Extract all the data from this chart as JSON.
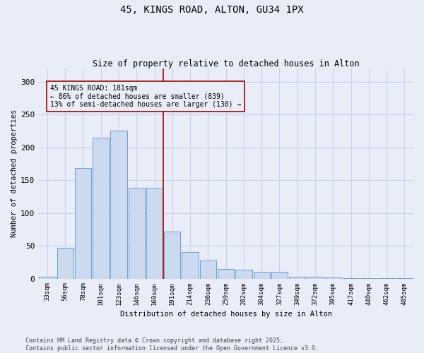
{
  "title_line1": "45, KINGS ROAD, ALTON, GU34 1PX",
  "title_line2": "Size of property relative to detached houses in Alton",
  "xlabel": "Distribution of detached houses by size in Alton",
  "ylabel": "Number of detached properties",
  "annotation_title": "45 KINGS ROAD: 181sqm",
  "annotation_line2": "← 86% of detached houses are smaller (839)",
  "annotation_line3": "13% of semi-detached houses are larger (130) →",
  "bar_color": "#ccdaf0",
  "bar_edge_color": "#6a9fd8",
  "vline_color": "#aa0000",
  "vline_x_index": 7,
  "categories": [
    "33sqm",
    "56sqm",
    "78sqm",
    "101sqm",
    "123sqm",
    "146sqm",
    "169sqm",
    "191sqm",
    "214sqm",
    "236sqm",
    "259sqm",
    "282sqm",
    "304sqm",
    "327sqm",
    "349sqm",
    "372sqm",
    "395sqm",
    "417sqm",
    "440sqm",
    "462sqm",
    "485sqm"
  ],
  "values": [
    3,
    47,
    168,
    215,
    225,
    138,
    138,
    72,
    40,
    27,
    15,
    13,
    10,
    10,
    3,
    3,
    2,
    1,
    1,
    1,
    1
  ],
  "ylim": [
    0,
    320
  ],
  "yticks": [
    0,
    50,
    100,
    150,
    200,
    250,
    300
  ],
  "bg_color": "#e8edf8",
  "footer_line1": "Contains HM Land Registry data © Crown copyright and database right 2025.",
  "footer_line2": "Contains public sector information licensed under the Open Government Licence v3.0.",
  "grid_color": "#d0d8e8",
  "figsize": [
    6.0,
    5.0
  ],
  "dpi": 100
}
